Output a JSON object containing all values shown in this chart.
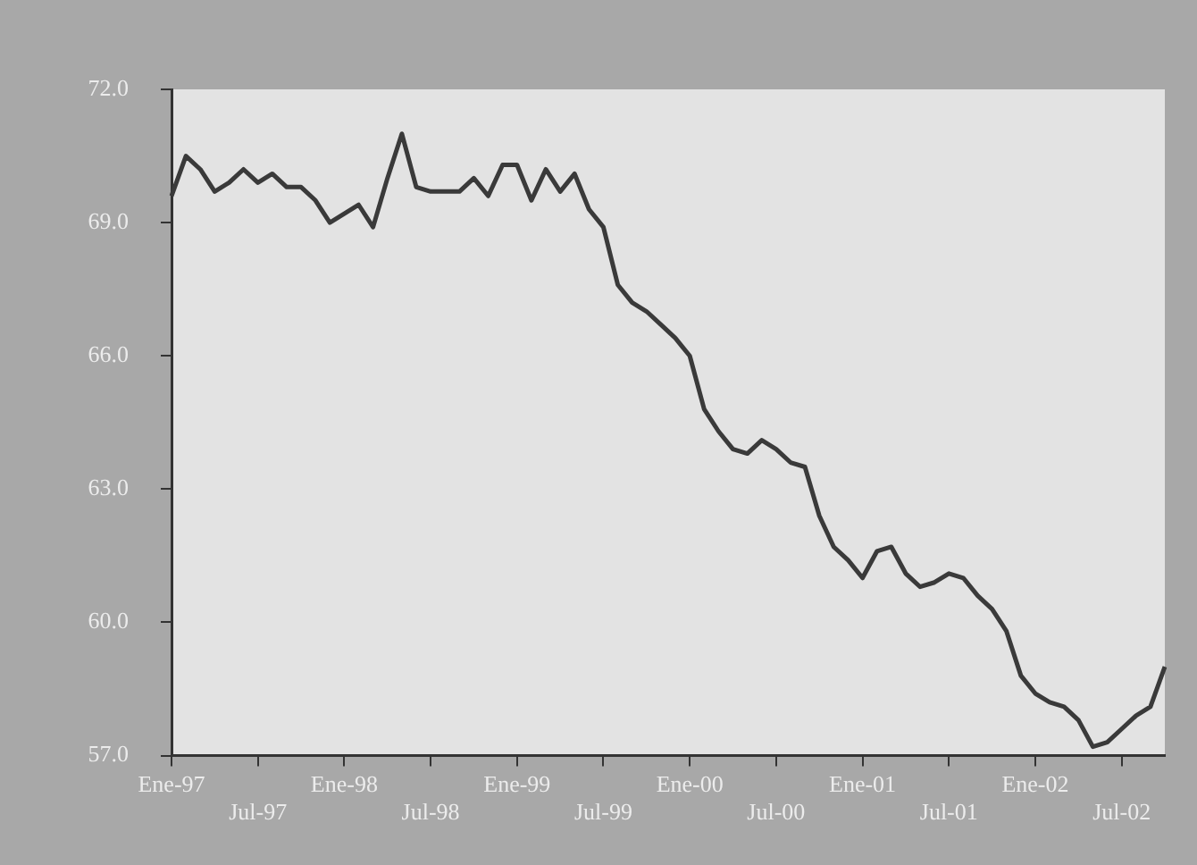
{
  "chart_data": {
    "type": "line",
    "categories": [
      "Ene-97",
      null,
      null,
      null,
      null,
      null,
      "Jul-97",
      null,
      null,
      null,
      null,
      null,
      "Ene-98",
      null,
      null,
      null,
      null,
      null,
      "Jul-98",
      null,
      null,
      null,
      null,
      null,
      "Ene-99",
      null,
      null,
      null,
      null,
      null,
      "Jul-99",
      null,
      null,
      null,
      null,
      null,
      "Ene-00",
      null,
      null,
      null,
      null,
      null,
      "Jul-00",
      null,
      null,
      null,
      null,
      null,
      "Ene-01",
      null,
      null,
      null,
      null,
      null,
      "Jul-01",
      null,
      null,
      null,
      null,
      null,
      "Ene-02",
      null,
      null,
      null,
      null,
      null,
      "Jul-02",
      null,
      null,
      null
    ],
    "series": [
      {
        "color": "#3a3a3a",
        "values": [
          69.6,
          70.5,
          70.2,
          69.7,
          69.9,
          70.2,
          69.9,
          70.1,
          69.8,
          69.8,
          69.5,
          69.0,
          69.2,
          69.4,
          68.9,
          70.0,
          71.0,
          69.8,
          69.7,
          69.7,
          69.7,
          70.0,
          69.6,
          70.3,
          70.3,
          69.5,
          70.2,
          69.7,
          70.1,
          69.3,
          68.9,
          67.6,
          67.2,
          67.0,
          66.7,
          66.4,
          66.0,
          64.8,
          64.3,
          63.9,
          63.8,
          64.1,
          63.9,
          63.6,
          63.5,
          62.4,
          61.7,
          61.4,
          61.0,
          61.6,
          61.7,
          61.1,
          60.8,
          60.9,
          61.1,
          61.0,
          60.6,
          60.3,
          59.8,
          58.8,
          58.4,
          58.2,
          58.1,
          57.8,
          57.2,
          57.3,
          57.6,
          57.9,
          58.1,
          59.0
        ]
      }
    ],
    "ylim": [
      57,
      72
    ],
    "yticks": [
      {
        "value": 57,
        "label": "57.0"
      },
      {
        "value": 60,
        "label": "60.0"
      },
      {
        "value": 63,
        "label": "63.0"
      },
      {
        "value": 66,
        "label": "66.0"
      },
      {
        "value": 69,
        "label": "69.0"
      },
      {
        "value": 72,
        "label": "72.0"
      }
    ],
    "grid": false,
    "legend": false,
    "marker": "none",
    "line_style": "solid"
  }
}
